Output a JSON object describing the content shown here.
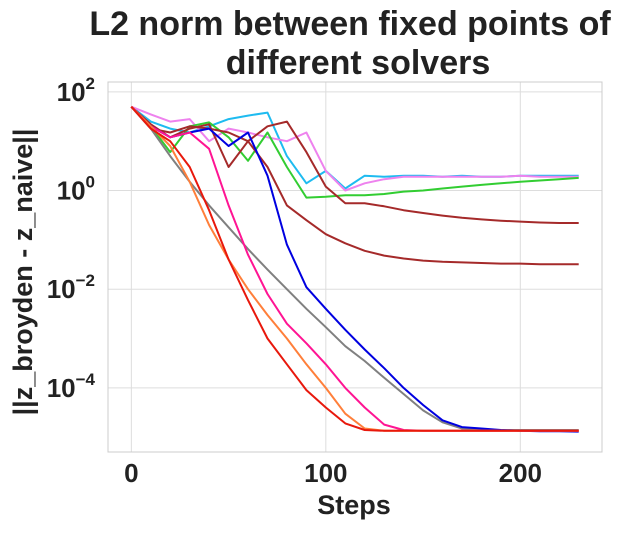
{
  "chart_data": {
    "type": "line",
    "title_lines": [
      "L2 norm between fixed points of",
      "different solvers"
    ],
    "xlabel": "Steps",
    "ylabel": "||z_broyden - z_naive||",
    "x_scale": "linear",
    "y_scale": "log",
    "xlim": [
      -12,
      242
    ],
    "ylim_log10": [
      -5.3,
      2.2
    ],
    "x_ticks": [
      {
        "value": 0,
        "label": "0"
      },
      {
        "value": 100,
        "label": "100"
      },
      {
        "value": 200,
        "label": "200"
      }
    ],
    "y_ticks": [
      {
        "exp": 2,
        "base": "10",
        "sup": "2"
      },
      {
        "exp": 0,
        "base": "10",
        "sup": "0"
      },
      {
        "exp": -2,
        "base": "10",
        "sup": "−2"
      },
      {
        "exp": -4,
        "base": "10",
        "sup": "−4"
      }
    ],
    "grid": true,
    "legend": "none",
    "series": [
      {
        "color": "#1ebbf0",
        "x": [
          0,
          10,
          20,
          30,
          40,
          50,
          60,
          70,
          80,
          90,
          100,
          110,
          120,
          130,
          140,
          150,
          160,
          170,
          180,
          190,
          200,
          210,
          220,
          230
        ],
        "y": [
          50,
          25,
          18,
          15,
          20,
          28,
          33,
          38,
          5,
          1.4,
          2.5,
          1.1,
          2,
          1.9,
          2,
          2,
          1.9,
          2,
          1.9,
          1.9,
          2,
          2,
          2,
          2
        ]
      },
      {
        "color": "#ee82ee",
        "x": [
          0,
          10,
          20,
          30,
          40,
          50,
          60,
          70,
          80,
          90,
          100,
          110,
          120,
          130,
          140,
          150,
          160,
          170,
          180,
          190,
          200,
          210,
          220,
          230
        ],
        "y": [
          50,
          35,
          25,
          28,
          10,
          18,
          15,
          12,
          10,
          15,
          2.5,
          1,
          1.4,
          1.7,
          1.9,
          1.9,
          1.9,
          1.9,
          1.9,
          1.9,
          2,
          1.9,
          1.9,
          1.9
        ]
      },
      {
        "color": "#32cd32",
        "x": [
          0,
          10,
          20,
          30,
          40,
          50,
          60,
          70,
          80,
          90,
          100,
          110,
          120,
          130,
          140,
          150,
          160,
          170,
          180,
          190,
          200,
          210,
          220,
          230
        ],
        "y": [
          50,
          20,
          6,
          20,
          24,
          12,
          4,
          15,
          3,
          0.72,
          0.75,
          0.8,
          0.8,
          0.85,
          0.95,
          1,
          1.1,
          1.2,
          1.3,
          1.4,
          1.5,
          1.6,
          1.7,
          1.8
        ]
      },
      {
        "color": "#a52a2a",
        "x": [
          0,
          10,
          20,
          30,
          40,
          50,
          60,
          70,
          80,
          90,
          100,
          110,
          120,
          130,
          140,
          150,
          160,
          170,
          180,
          190,
          200,
          210,
          220,
          230
        ],
        "y": [
          50,
          22,
          12,
          18,
          22,
          3,
          10,
          20,
          25,
          6,
          1.2,
          0.55,
          0.55,
          0.48,
          0.4,
          0.35,
          0.31,
          0.28,
          0.26,
          0.245,
          0.235,
          0.225,
          0.22,
          0.22
        ]
      },
      {
        "color": "#a52a2a",
        "x": [
          0,
          10,
          20,
          30,
          40,
          50,
          60,
          70,
          80,
          90,
          100,
          110,
          120,
          130,
          140,
          150,
          160,
          170,
          180,
          190,
          200,
          210,
          220,
          230
        ],
        "y": [
          50,
          18,
          15,
          20,
          18,
          15,
          10,
          3,
          0.5,
          0.25,
          0.13,
          0.085,
          0.06,
          0.048,
          0.042,
          0.038,
          0.036,
          0.035,
          0.034,
          0.033,
          0.033,
          0.032,
          0.032,
          0.032
        ]
      },
      {
        "color": "#808080",
        "x": [
          0,
          10,
          20,
          30,
          40,
          50,
          60,
          70,
          80,
          90,
          100,
          110,
          120,
          130,
          140,
          150,
          160,
          170,
          180,
          190,
          200,
          210,
          220,
          230
        ],
        "y": [
          50,
          18,
          5,
          1.5,
          0.5,
          0.18,
          0.065,
          0.025,
          0.01,
          0.004,
          0.0017,
          0.0007,
          0.00035,
          0.00016,
          7.5e-05,
          3.5e-05,
          2e-05,
          1.5e-05,
          1.4e-05,
          1.4e-05,
          1.4e-05,
          1.4e-05,
          1.4e-05,
          1.4e-05
        ]
      },
      {
        "color": "#0000e0",
        "x": [
          0,
          10,
          20,
          30,
          40,
          50,
          60,
          70,
          80,
          90,
          100,
          110,
          120,
          130,
          140,
          150,
          160,
          170,
          180,
          190,
          200,
          210,
          220,
          230
        ],
        "y": [
          50,
          20,
          12,
          15,
          18,
          8,
          15,
          2,
          0.08,
          0.011,
          0.004,
          0.0015,
          0.0006,
          0.00025,
          0.0001,
          4.5e-05,
          2.2e-05,
          1.6e-05,
          1.5e-05,
          1.4e-05,
          1.35e-05,
          1.32e-05,
          1.32e-05,
          1.3e-05
        ]
      },
      {
        "color": "#ff1493",
        "x": [
          0,
          10,
          20,
          30,
          40,
          50,
          60,
          70,
          80,
          90,
          100,
          110,
          120,
          130,
          140,
          150,
          160,
          170,
          180,
          190,
          200,
          210,
          220,
          230
        ],
        "y": [
          50,
          20,
          12,
          15,
          7,
          0.5,
          0.05,
          0.008,
          0.002,
          0.0008,
          0.0003,
          0.0001,
          4e-05,
          1.8e-05,
          1.4e-05,
          1.35e-05,
          1.35e-05,
          1.35e-05,
          1.35e-05,
          1.35e-05,
          1.35e-05,
          1.35e-05,
          1.35e-05,
          1.35e-05
        ]
      },
      {
        "color": "#ff7f3a",
        "x": [
          0,
          10,
          20,
          30,
          40,
          50,
          60,
          70,
          80,
          90,
          100,
          110,
          120,
          130,
          140,
          150,
          160,
          170,
          180,
          190,
          200,
          210,
          220,
          230
        ],
        "y": [
          50,
          20,
          8,
          1.5,
          0.2,
          0.04,
          0.01,
          0.003,
          0.001,
          0.0003,
          0.0001,
          3e-05,
          1.5e-05,
          1.35e-05,
          1.35e-05,
          1.35e-05,
          1.35e-05,
          1.35e-05,
          1.35e-05,
          1.35e-05,
          1.35e-05,
          1.35e-05,
          1.35e-05,
          1.35e-05
        ]
      },
      {
        "color": "#e8180c",
        "x": [
          0,
          10,
          20,
          30,
          40,
          50,
          60,
          70,
          80,
          90,
          100,
          110,
          120,
          130,
          140,
          150,
          160,
          170,
          180,
          190,
          200,
          210,
          220,
          230
        ],
        "y": [
          50,
          18,
          10,
          3,
          0.4,
          0.04,
          0.006,
          0.001,
          0.0003,
          9e-05,
          4e-05,
          1.9e-05,
          1.4e-05,
          1.35e-05,
          1.35e-05,
          1.35e-05,
          1.35e-05,
          1.35e-05,
          1.35e-05,
          1.35e-05,
          1.35e-05,
          1.35e-05,
          1.35e-05,
          1.35e-05
        ]
      }
    ]
  }
}
